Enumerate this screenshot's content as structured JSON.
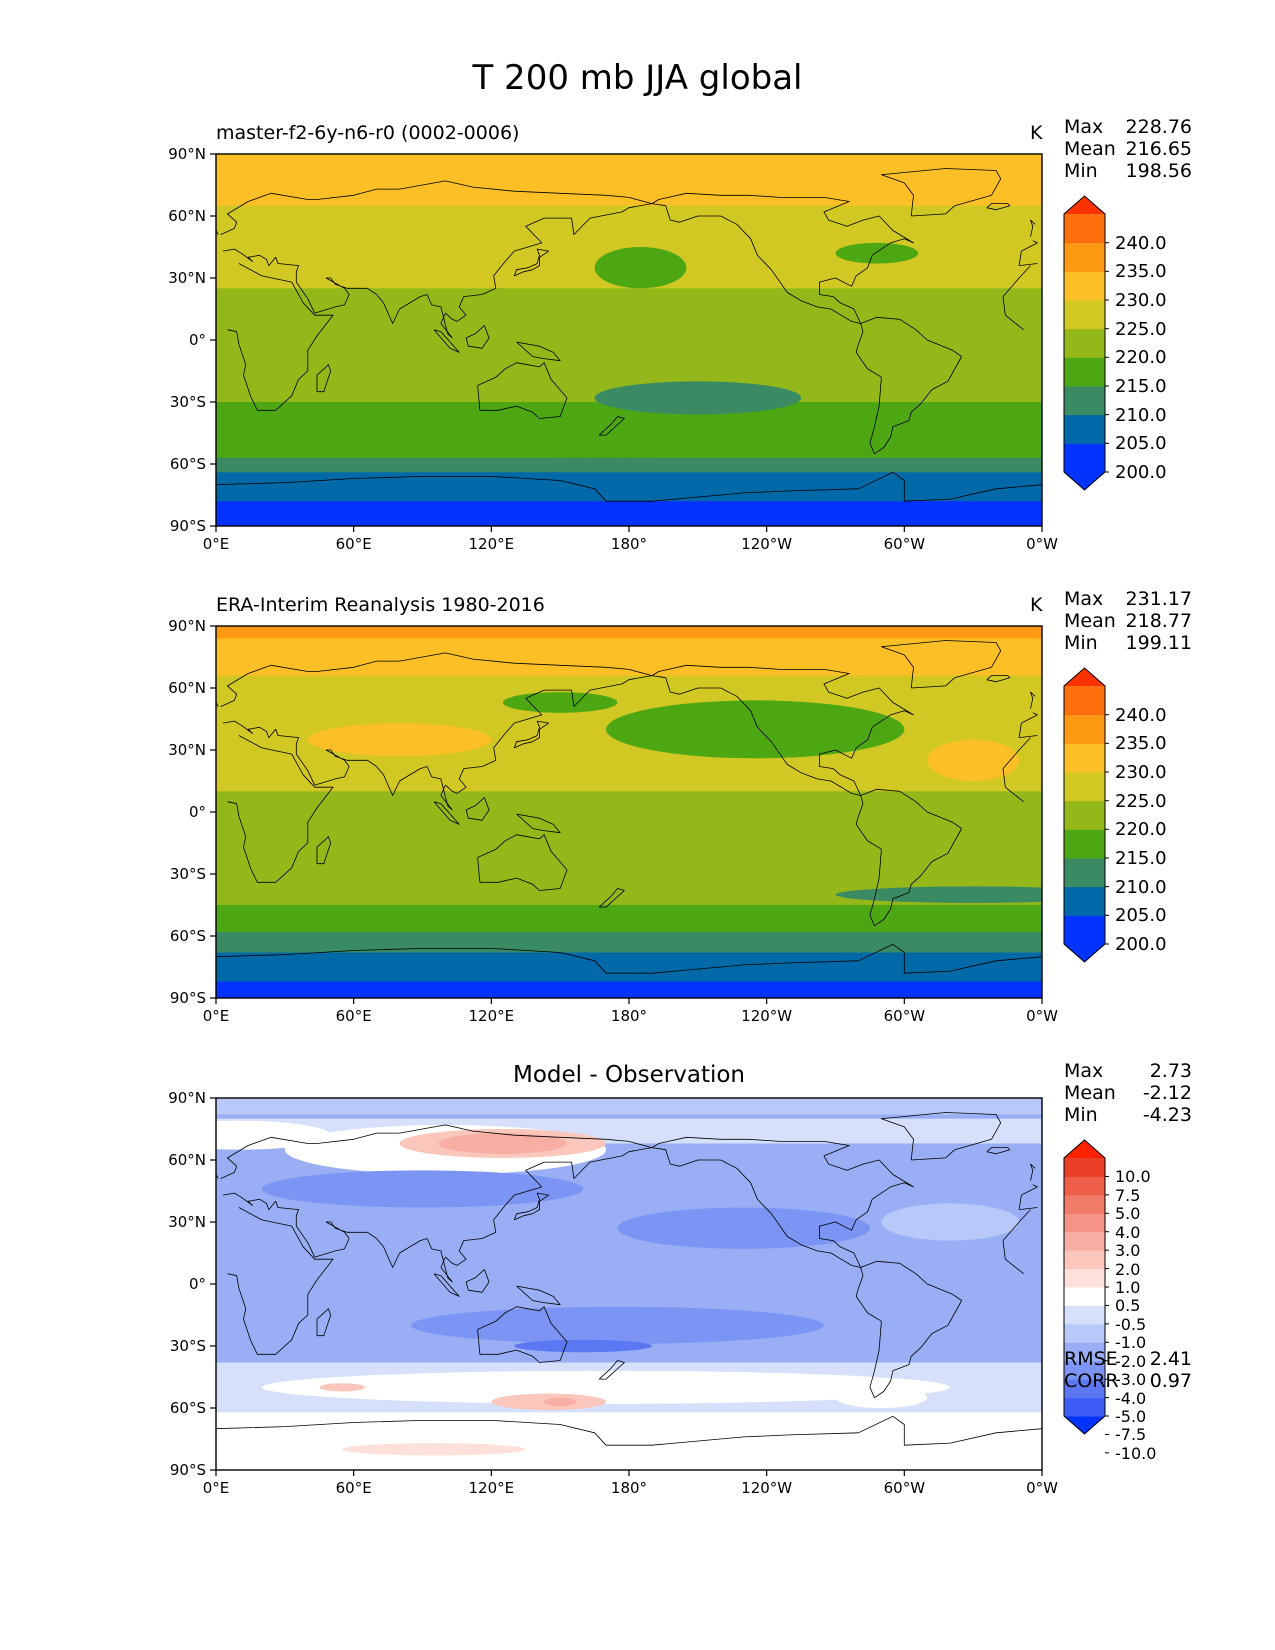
{
  "figure_title": "T 200 mb JJA global",
  "colors": {
    "c200": "#0433ff",
    "c205": "#0169a8",
    "c210": "#3a8a64",
    "c215": "#4ca712",
    "c220": "#94b81a",
    "c225": "#d1c823",
    "c230": "#fcc026",
    "c235": "#fe9914",
    "c240": "#fe6f0d",
    "c245": "#ff3300",
    "diff": [
      "#0433ff",
      "#3d5cf6",
      "#5b77f2",
      "#7c94f4",
      "#9aaef6",
      "#b8c8f8",
      "#d6e0fb",
      "#ffffff",
      "#fde0da",
      "#fbc6bc",
      "#f8aea2",
      "#f59486",
      "#f27a68",
      "#ef5e48",
      "#ec3f28",
      "#ff2200"
    ]
  },
  "chart_data": [
    {
      "type": "heatmap",
      "panel": "model",
      "title": "master-f2-6y-n6-r0 (0002-0006)",
      "units": "K",
      "stats": {
        "max_label": "Max",
        "max": "228.76",
        "mean_label": "Mean",
        "mean": "216.65",
        "min_label": "Min",
        "min": "198.56"
      },
      "colorbar": {
        "levels": [
          "240.0",
          "235.0",
          "230.0",
          "225.0",
          "220.0",
          "215.0",
          "210.0",
          "205.0",
          "200.0"
        ]
      },
      "x_ticks": [
        "0°E",
        "60°E",
        "120°E",
        "180°",
        "120°W",
        "60°W",
        "0°W"
      ],
      "y_ticks": [
        "90°N",
        "60°N",
        "30°N",
        "0°",
        "30°S",
        "60°S",
        "90°S"
      ],
      "x_range": [
        0,
        360
      ],
      "y_range": [
        -90,
        90
      ],
      "field_bands": [
        {
          "lat_from": 90,
          "lat_to": 65,
          "level": 225
        },
        {
          "lat_from": 65,
          "lat_to": 25,
          "level": 220
        },
        {
          "lat_from": 25,
          "lat_to": -30,
          "level": 215
        },
        {
          "lat_from": -30,
          "lat_to": -57,
          "level": 210
        },
        {
          "lat_from": -57,
          "lat_to": -64,
          "level": 205
        },
        {
          "lat_from": -64,
          "lat_to": -78,
          "level": 200
        },
        {
          "lat_from": -78,
          "lat_to": -90,
          "level": 195
        }
      ]
    },
    {
      "type": "heatmap",
      "panel": "observation",
      "title": "ERA-Interim Reanalysis 1980-2016",
      "units": "K",
      "stats": {
        "max_label": "Max",
        "max": "231.17",
        "mean_label": "Mean",
        "mean": "218.77",
        "min_label": "Min",
        "min": "199.11"
      },
      "colorbar": {
        "levels": [
          "240.0",
          "235.0",
          "230.0",
          "225.0",
          "220.0",
          "215.0",
          "210.0",
          "205.0",
          "200.0"
        ]
      },
      "x_ticks": [
        "0°E",
        "60°E",
        "120°E",
        "180°",
        "120°W",
        "60°W",
        "0°W"
      ],
      "y_ticks": [
        "90°N",
        "60°N",
        "30°N",
        "0°",
        "30°S",
        "60°S",
        "90°S"
      ],
      "x_range": [
        0,
        360
      ],
      "y_range": [
        -90,
        90
      ],
      "field_bands": [
        {
          "lat_from": 90,
          "lat_to": 84,
          "level": 230
        },
        {
          "lat_from": 84,
          "lat_to": 66,
          "level": 225
        },
        {
          "lat_from": 66,
          "lat_to": 10,
          "level": 220
        },
        {
          "lat_from": 10,
          "lat_to": -45,
          "level": 215
        },
        {
          "lat_from": -45,
          "lat_to": -58,
          "level": 210
        },
        {
          "lat_from": -58,
          "lat_to": -68,
          "level": 205
        },
        {
          "lat_from": -68,
          "lat_to": -82,
          "level": 200
        },
        {
          "lat_from": -82,
          "lat_to": -90,
          "level": 195
        }
      ]
    },
    {
      "type": "heatmap",
      "panel": "difference",
      "title": "Model - Observation",
      "units": "",
      "stats": {
        "max_label": "Max",
        "max": "2.73",
        "mean_label": "Mean",
        "mean": "-2.12",
        "min_label": "Min",
        "min": "-4.23"
      },
      "rmse_label": "RMSE",
      "rmse": "2.41",
      "corr_label": "CORR",
      "corr": "0.97",
      "colorbar": {
        "levels": [
          "10.0",
          "7.5",
          "5.0",
          "4.0",
          "3.0",
          "2.0",
          "1.0",
          "0.5",
          "-0.5",
          "-1.0",
          "-2.0",
          "-3.0",
          "-4.0",
          "-5.0",
          "-7.5",
          "-10.0"
        ]
      },
      "x_ticks": [
        "0°E",
        "60°E",
        "120°E",
        "180°",
        "120°W",
        "60°W",
        "0°W"
      ],
      "y_ticks": [
        "90°N",
        "60°N",
        "30°N",
        "0°",
        "30°S",
        "60°S",
        "90°S"
      ],
      "x_range": [
        0,
        360
      ],
      "y_range": [
        -90,
        90
      ]
    }
  ]
}
